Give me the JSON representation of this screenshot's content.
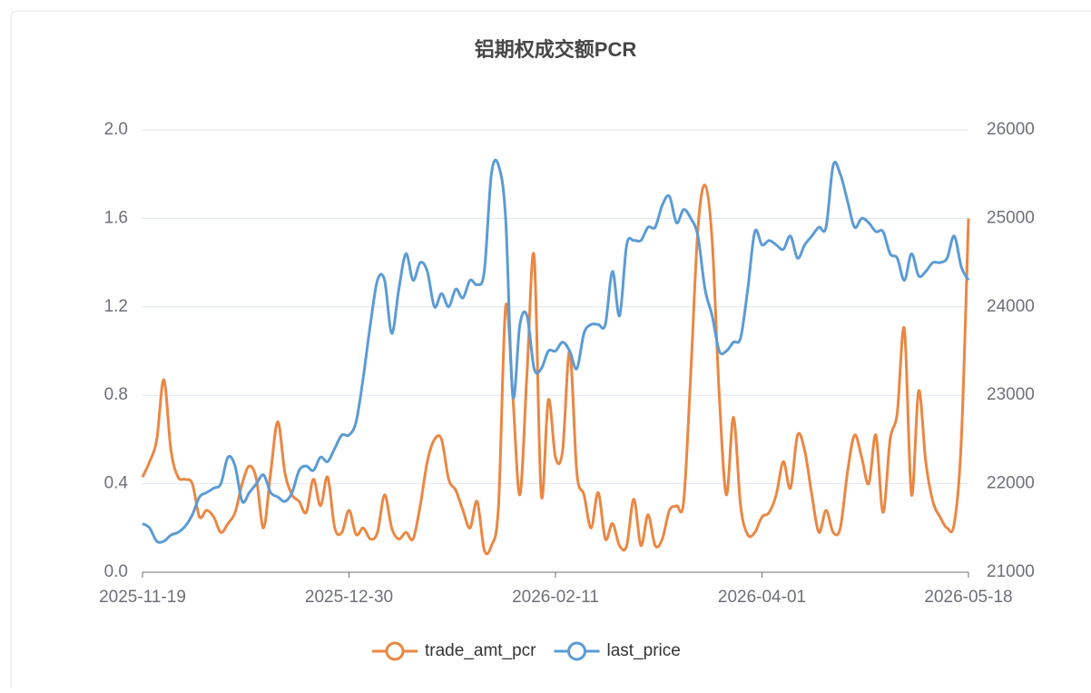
{
  "chart_data": {
    "type": "line",
    "title": "铝期权成交额PCR",
    "categories": [
      "2025-11-19",
      null,
      null,
      null,
      null,
      null,
      null,
      null,
      null,
      null,
      null,
      null,
      null,
      null,
      null,
      null,
      null,
      null,
      null,
      null,
      null,
      null,
      null,
      null,
      null,
      null,
      null,
      null,
      null,
      "2025-12-30",
      null,
      null,
      null,
      null,
      null,
      null,
      null,
      null,
      null,
      null,
      null,
      null,
      null,
      null,
      null,
      null,
      null,
      null,
      null,
      null,
      null,
      null,
      null,
      null,
      null,
      null,
      null,
      null,
      "2026-02-11",
      null,
      null,
      null,
      null,
      null,
      null,
      null,
      null,
      null,
      null,
      null,
      null,
      null,
      null,
      null,
      null,
      null,
      null,
      null,
      null,
      null,
      null,
      null,
      null,
      null,
      null,
      null,
      null,
      "2026-04-01",
      null,
      null,
      null,
      null,
      null,
      null,
      null,
      null,
      null,
      null,
      null,
      null,
      null,
      null,
      null,
      null,
      null,
      null,
      null,
      null,
      null,
      null,
      null,
      null,
      null,
      null,
      null,
      null,
      "2026-05-18"
    ],
    "series": [
      {
        "name": "trade_amt_pcr",
        "color": "#ea8743",
        "values": [
          0.43,
          0.5,
          0.6,
          0.87,
          0.55,
          0.43,
          0.42,
          0.4,
          0.25,
          0.28,
          0.25,
          0.18,
          0.22,
          0.27,
          0.4,
          0.48,
          0.42,
          0.2,
          0.45,
          0.68,
          0.45,
          0.35,
          0.32,
          0.27,
          0.42,
          0.3,
          0.43,
          0.2,
          0.18,
          0.28,
          0.17,
          0.2,
          0.15,
          0.18,
          0.35,
          0.2,
          0.15,
          0.18,
          0.15,
          0.3,
          0.5,
          0.6,
          0.6,
          0.42,
          0.37,
          0.28,
          0.2,
          0.32,
          0.1,
          0.12,
          0.3,
          1.2,
          0.8,
          0.35,
          0.9,
          1.43,
          0.35,
          0.78,
          0.52,
          0.55,
          1.0,
          0.45,
          0.35,
          0.2,
          0.36,
          0.15,
          0.22,
          0.12,
          0.12,
          0.33,
          0.12,
          0.26,
          0.12,
          0.15,
          0.28,
          0.3,
          0.32,
          0.9,
          1.55,
          1.75,
          1.5,
          0.8,
          0.35,
          0.7,
          0.3,
          0.17,
          0.18,
          0.25,
          0.27,
          0.35,
          0.5,
          0.38,
          0.62,
          0.55,
          0.35,
          0.18,
          0.28,
          0.18,
          0.2,
          0.45,
          0.62,
          0.52,
          0.4,
          0.62,
          0.27,
          0.6,
          0.72,
          1.1,
          0.35,
          0.82,
          0.5,
          0.32,
          0.25,
          0.2,
          0.22,
          0.6,
          1.6
        ]
      },
      {
        "name": "last_price",
        "color": "#5b9bd5",
        "axis": "y2",
        "values": [
          21550,
          21500,
          21350,
          21350,
          21420,
          21450,
          21520,
          21650,
          21850,
          21900,
          21950,
          22000,
          22300,
          22200,
          21800,
          21900,
          22000,
          22100,
          21900,
          21850,
          21800,
          21900,
          22150,
          22200,
          22150,
          22300,
          22250,
          22400,
          22550,
          22550,
          22700,
          23200,
          23800,
          24300,
          24300,
          23700,
          24200,
          24600,
          24300,
          24500,
          24400,
          24000,
          24150,
          24000,
          24200,
          24100,
          24300,
          24250,
          24400,
          25500,
          25600,
          25000,
          23000,
          23800,
          23900,
          23300,
          23300,
          23500,
          23500,
          23600,
          23500,
          23300,
          23700,
          23800,
          23800,
          23800,
          24400,
          23900,
          24700,
          24750,
          24750,
          24900,
          24900,
          25150,
          25250,
          24950,
          25100,
          25000,
          24800,
          24200,
          23900,
          23500,
          23500,
          23600,
          23650,
          24200,
          24850,
          24700,
          24750,
          24700,
          24650,
          24800,
          24550,
          24700,
          24800,
          24900,
          24900,
          25600,
          25500,
          25200,
          24900,
          25000,
          24950,
          24850,
          24850,
          24600,
          24550,
          24300,
          24600,
          24350,
          24400,
          24500,
          24500,
          24550,
          24800,
          24450,
          24300
        ]
      }
    ],
    "ylim": [
      0,
      2
    ],
    "yticks": [
      {
        "value": 0,
        "label": "0.0"
      },
      0.4,
      0.8,
      1.2,
      1.6,
      {
        "value": 2,
        "label": "2.0"
      }
    ],
    "y2lim": [
      21000,
      26000
    ],
    "y2ticks": [
      21000,
      22000,
      23000,
      24000,
      25000,
      26000
    ],
    "grid": true,
    "legend": "bottom"
  }
}
